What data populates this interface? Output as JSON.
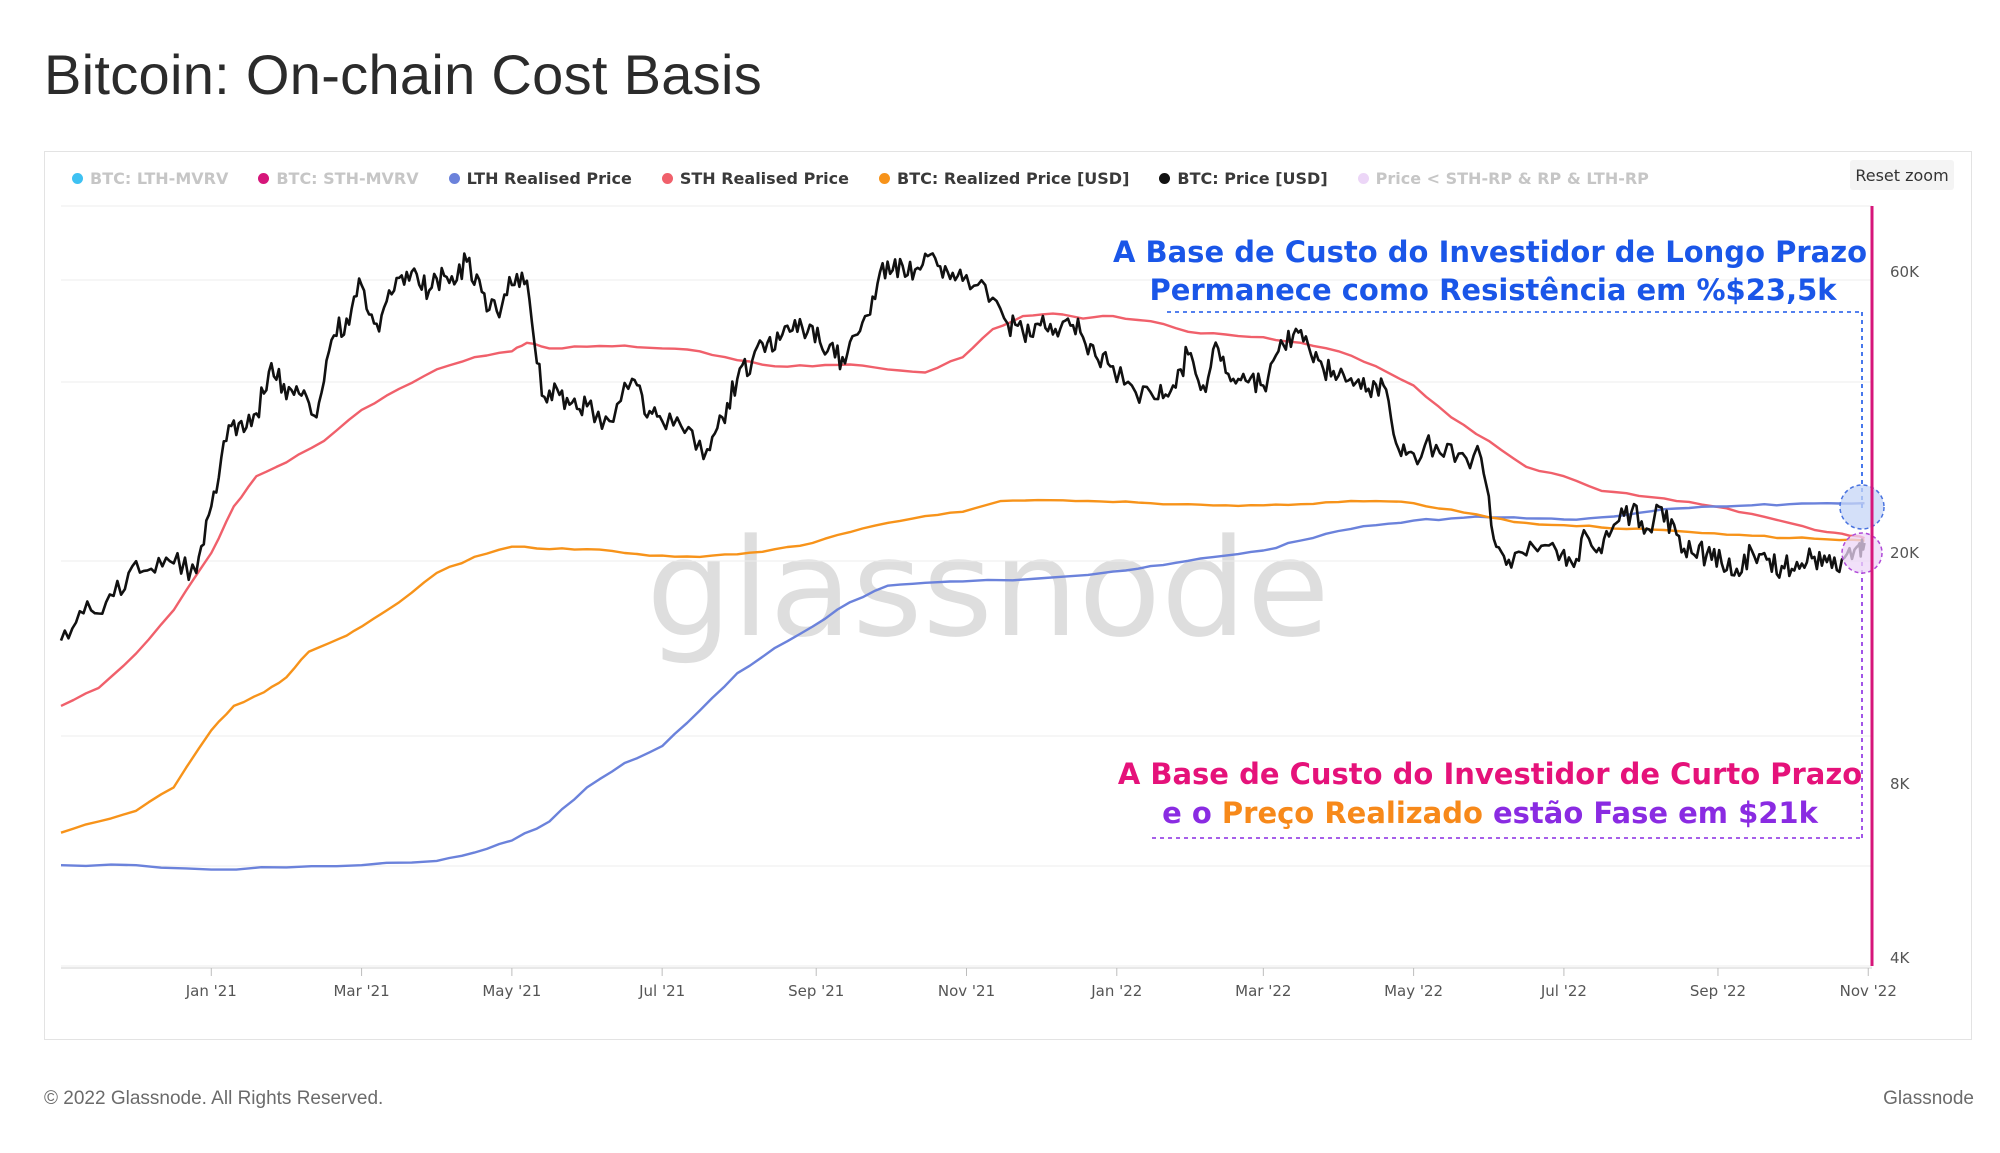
{
  "title": "Bitcoin: On-chain Cost Basis",
  "reset_zoom": "Reset zoom",
  "footer": {
    "copyright": "© 2022 Glassnode. All Rights Reserved.",
    "brand": "Glassnode"
  },
  "watermark": "glassnode",
  "legend": [
    {
      "label": "BTC: LTH-MVRV",
      "color": "#3ec1f2",
      "active": false
    },
    {
      "label": "BTC: STH-MVRV",
      "color": "#d6167a",
      "active": false
    },
    {
      "label": "LTH Realised Price",
      "color": "#6b82db",
      "active": true
    },
    {
      "label": "STH Realised Price",
      "color": "#f0606b",
      "active": true
    },
    {
      "label": "BTC: Realized Price [USD]",
      "color": "#f7931a",
      "active": true
    },
    {
      "label": "BTC: Price [USD]",
      "color": "#111111",
      "active": true
    },
    {
      "label": "Price < STH-RP & RP & LTH-RP",
      "color": "#ecd6f7",
      "active": false
    }
  ],
  "annotations": {
    "lth": {
      "line1": "A Base de Custo do Investidor de Longo Prazo",
      "line2": "Permanece como Resistência em %$23,5k",
      "color": "#1a56e8"
    },
    "sth": {
      "line1": "A Base de Custo do Investidor de Curto Prazo",
      "line2_parts": [
        {
          "text": "e o ",
          "color": "#8a2be2"
        },
        {
          "text": "Preço Realizado",
          "color": "#f7891a"
        },
        {
          "text": " estão Fase em $21k",
          "color": "#8a2be2"
        }
      ],
      "line1_color": "#e5127a"
    }
  },
  "chart_data": {
    "type": "line",
    "title": "Bitcoin: On-chain Cost Basis",
    "y_scale": "log",
    "ylim": [
      4000,
      80000
    ],
    "y_ticks": [
      {
        "label": "60K",
        "value": 60000
      },
      {
        "label": "20K",
        "value": 20000
      },
      {
        "label": "8K",
        "value": 8000
      },
      {
        "label": "4K",
        "value": 4000
      }
    ],
    "x_range": [
      "2020-11-05",
      "2022-11-08"
    ],
    "x_ticks": [
      {
        "label": "Jan '21",
        "t": 2.0
      },
      {
        "label": "Mar '21",
        "t": 4.0
      },
      {
        "label": "May '21",
        "t": 6.0
      },
      {
        "label": "Jul '21",
        "t": 8.0
      },
      {
        "label": "Sep '21",
        "t": 10.05
      },
      {
        "label": "Nov '21",
        "t": 12.05
      },
      {
        "label": "Jan '22",
        "t": 14.05
      },
      {
        "label": "Mar '22",
        "t": 16.0
      },
      {
        "label": "May '22",
        "t": 18.0
      },
      {
        "label": "Jul '22",
        "t": 20.0
      },
      {
        "label": "Sep '22",
        "t": 22.05
      },
      {
        "label": "Nov '22",
        "t": 24.05
      }
    ],
    "x_unit": "months since 2020-11-05",
    "series": [
      {
        "name": "STH Realised Price",
        "color": "#f0606b",
        "points": [
          [
            0,
            11000
          ],
          [
            0.5,
            11800
          ],
          [
            1,
            13500
          ],
          [
            1.5,
            16000
          ],
          [
            2,
            20000
          ],
          [
            2.3,
            24000
          ],
          [
            2.6,
            27000
          ],
          [
            3,
            28500
          ],
          [
            3.5,
            31000
          ],
          [
            4,
            35000
          ],
          [
            4.5,
            38000
          ],
          [
            5,
            41000
          ],
          [
            5.5,
            43000
          ],
          [
            6,
            44000
          ],
          [
            6.2,
            45500
          ],
          [
            6.5,
            44500
          ],
          [
            7,
            44800
          ],
          [
            7.5,
            45000
          ],
          [
            8,
            44500
          ],
          [
            8.5,
            44000
          ],
          [
            9,
            42500
          ],
          [
            9.5,
            41500
          ],
          [
            10,
            41500
          ],
          [
            10.5,
            41800
          ],
          [
            11,
            41000
          ],
          [
            11.5,
            40500
          ],
          [
            12,
            43000
          ],
          [
            12.4,
            48000
          ],
          [
            12.8,
            50500
          ],
          [
            13.2,
            51000
          ],
          [
            13.6,
            50000
          ],
          [
            14,
            50500
          ],
          [
            14.5,
            49500
          ],
          [
            15,
            47500
          ],
          [
            15.5,
            47000
          ],
          [
            16,
            46500
          ],
          [
            16.5,
            45500
          ],
          [
            17,
            44000
          ],
          [
            17.5,
            41500
          ],
          [
            18,
            38500
          ],
          [
            18.5,
            34000
          ],
          [
            19,
            31000
          ],
          [
            19.5,
            28000
          ],
          [
            20,
            27000
          ],
          [
            20.5,
            25500
          ],
          [
            21,
            25000
          ],
          [
            21.5,
            24500
          ],
          [
            22,
            24000
          ],
          [
            22.5,
            23300
          ],
          [
            23,
            22500
          ],
          [
            23.5,
            21700
          ],
          [
            23.8,
            21400
          ],
          [
            24,
            21200
          ]
        ]
      },
      {
        "name": "LTH Realised Price",
        "color": "#6b82db",
        "points": [
          [
            0,
            5900
          ],
          [
            1,
            5900
          ],
          [
            2,
            5800
          ],
          [
            3,
            5850
          ],
          [
            4,
            5900
          ],
          [
            5,
            6000
          ],
          [
            5.5,
            6200
          ],
          [
            6,
            6500
          ],
          [
            6.5,
            7000
          ],
          [
            7,
            8000
          ],
          [
            7.5,
            8800
          ],
          [
            8,
            9400
          ],
          [
            8.5,
            10800
          ],
          [
            9,
            12500
          ],
          [
            9.5,
            13800
          ],
          [
            10,
            15000
          ],
          [
            10.5,
            16500
          ],
          [
            11,
            17600
          ],
          [
            11.5,
            17800
          ],
          [
            12,
            17900
          ],
          [
            13,
            18100
          ],
          [
            14,
            18600
          ],
          [
            14.5,
            19000
          ],
          [
            15,
            19400
          ],
          [
            15.5,
            19800
          ],
          [
            16,
            20200
          ],
          [
            16.5,
            21000
          ],
          [
            17,
            21800
          ],
          [
            17.5,
            22300
          ],
          [
            18,
            22700
          ],
          [
            18.5,
            22900
          ],
          [
            19,
            23000
          ],
          [
            19.5,
            22900
          ],
          [
            20,
            22800
          ],
          [
            20.5,
            23000
          ],
          [
            21,
            23400
          ],
          [
            21.5,
            23800
          ],
          [
            22,
            24000
          ],
          [
            22.5,
            24100
          ],
          [
            23,
            24200
          ],
          [
            23.5,
            24300
          ],
          [
            24,
            24300
          ]
        ]
      },
      {
        "name": "BTC: Realized Price [USD]",
        "color": "#f7931a",
        "points": [
          [
            0,
            6700
          ],
          [
            0.5,
            7000
          ],
          [
            1,
            7300
          ],
          [
            1.5,
            8000
          ],
          [
            2,
            10000
          ],
          [
            2.3,
            11000
          ],
          [
            2.7,
            11600
          ],
          [
            3,
            12300
          ],
          [
            3.3,
            13600
          ],
          [
            3.7,
            14300
          ],
          [
            4,
            15000
          ],
          [
            4.5,
            16500
          ],
          [
            5,
            18500
          ],
          [
            5.5,
            19700
          ],
          [
            6,
            20500
          ],
          [
            6.5,
            20300
          ],
          [
            7,
            20300
          ],
          [
            7.5,
            20000
          ],
          [
            8,
            19800
          ],
          [
            8.5,
            19700
          ],
          [
            9,
            19900
          ],
          [
            9.5,
            20300
          ],
          [
            10,
            20800
          ],
          [
            10.5,
            21700
          ],
          [
            11,
            22500
          ],
          [
            11.5,
            23100
          ],
          [
            12,
            23500
          ],
          [
            12.5,
            24500
          ],
          [
            13,
            24600
          ],
          [
            13.5,
            24500
          ],
          [
            14,
            24400
          ],
          [
            14.5,
            24300
          ],
          [
            15,
            24200
          ],
          [
            15.5,
            24100
          ],
          [
            16,
            24100
          ],
          [
            16.5,
            24200
          ],
          [
            17,
            24400
          ],
          [
            17.5,
            24500
          ],
          [
            18,
            24300
          ],
          [
            18.5,
            23700
          ],
          [
            19,
            23000
          ],
          [
            19.5,
            22500
          ],
          [
            20,
            22300
          ],
          [
            20.5,
            22100
          ],
          [
            21,
            22000
          ],
          [
            21.5,
            21800
          ],
          [
            22,
            21600
          ],
          [
            22.5,
            21400
          ],
          [
            23,
            21200
          ],
          [
            23.5,
            21100
          ],
          [
            24,
            21000
          ]
        ]
      },
      {
        "name": "BTC: Price [USD]",
        "color": "#111111",
        "points": [
          [
            0,
            14200
          ],
          [
            0.3,
            15800
          ],
          [
            0.6,
            16500
          ],
          [
            0.9,
            18500
          ],
          [
            1.2,
            18800
          ],
          [
            1.5,
            19200
          ],
          [
            1.8,
            18500
          ],
          [
            2,
            24000
          ],
          [
            2.2,
            31000
          ],
          [
            2.4,
            33500
          ],
          [
            2.6,
            34500
          ],
          [
            2.8,
            42000
          ],
          [
            3,
            36500
          ],
          [
            3.2,
            37000
          ],
          [
            3.4,
            34000
          ],
          [
            3.6,
            46000
          ],
          [
            3.8,
            50000
          ],
          [
            4,
            57000
          ],
          [
            4.2,
            49000
          ],
          [
            4.4,
            55000
          ],
          [
            4.6,
            60000
          ],
          [
            4.8,
            56000
          ],
          [
            5,
            58500
          ],
          [
            5.2,
            59000
          ],
          [
            5.4,
            62500
          ],
          [
            5.6,
            55500
          ],
          [
            5.8,
            51500
          ],
          [
            6,
            57000
          ],
          [
            6.2,
            58000
          ],
          [
            6.4,
            37000
          ],
          [
            6.6,
            38000
          ],
          [
            6.8,
            36000
          ],
          [
            7,
            35500
          ],
          [
            7.3,
            33500
          ],
          [
            7.6,
            39500
          ],
          [
            7.8,
            34000
          ],
          [
            8,
            33500
          ],
          [
            8.3,
            32000
          ],
          [
            8.6,
            30000
          ],
          [
            8.8,
            34000
          ],
          [
            9,
            39500
          ],
          [
            9.2,
            42500
          ],
          [
            9.4,
            45500
          ],
          [
            9.6,
            47000
          ],
          [
            9.8,
            47500
          ],
          [
            10,
            48500
          ],
          [
            10.2,
            44000
          ],
          [
            10.4,
            43000
          ],
          [
            10.6,
            47000
          ],
          [
            10.8,
            54500
          ],
          [
            11,
            62500
          ],
          [
            11.2,
            61500
          ],
          [
            11.4,
            61000
          ],
          [
            11.6,
            64500
          ],
          [
            11.8,
            60000
          ],
          [
            12,
            58000
          ],
          [
            12.3,
            57000
          ],
          [
            12.6,
            49000
          ],
          [
            12.8,
            47500
          ],
          [
            13,
            49000
          ],
          [
            13.2,
            47000
          ],
          [
            13.4,
            50000
          ],
          [
            13.6,
            46500
          ],
          [
            13.8,
            42500
          ],
          [
            14,
            41500
          ],
          [
            14.3,
            37500
          ],
          [
            14.6,
            36500
          ],
          [
            14.8,
            38500
          ],
          [
            15,
            43500
          ],
          [
            15.2,
            38500
          ],
          [
            15.4,
            44500
          ],
          [
            15.6,
            39500
          ],
          [
            15.8,
            39000
          ],
          [
            16,
            38500
          ],
          [
            16.2,
            44000
          ],
          [
            16.4,
            47000
          ],
          [
            16.6,
            45000
          ],
          [
            16.8,
            41000
          ],
          [
            17,
            40000
          ],
          [
            17.2,
            38500
          ],
          [
            17.4,
            38000
          ],
          [
            17.6,
            38500
          ],
          [
            17.8,
            30000
          ],
          [
            18,
            29500
          ],
          [
            18.3,
            30500
          ],
          [
            18.6,
            29500
          ],
          [
            18.9,
            29000
          ],
          [
            19.1,
            20500
          ],
          [
            19.3,
            18900
          ],
          [
            19.6,
            20500
          ],
          [
            19.9,
            20200
          ],
          [
            20.1,
            19300
          ],
          [
            20.3,
            21500
          ],
          [
            20.5,
            20000
          ],
          [
            20.7,
            22500
          ],
          [
            20.9,
            23500
          ],
          [
            21.1,
            22000
          ],
          [
            21.3,
            23900
          ],
          [
            21.5,
            21500
          ],
          [
            21.7,
            20000
          ],
          [
            21.9,
            19900
          ],
          [
            22.1,
            19200
          ],
          [
            22.3,
            18800
          ],
          [
            22.5,
            20200
          ],
          [
            22.7,
            19500
          ],
          [
            22.9,
            19000
          ],
          [
            23.1,
            19300
          ],
          [
            23.3,
            19600
          ],
          [
            23.5,
            19300
          ],
          [
            23.7,
            19500
          ],
          [
            23.9,
            20500
          ],
          [
            24,
            20800
          ]
        ]
      }
    ]
  }
}
